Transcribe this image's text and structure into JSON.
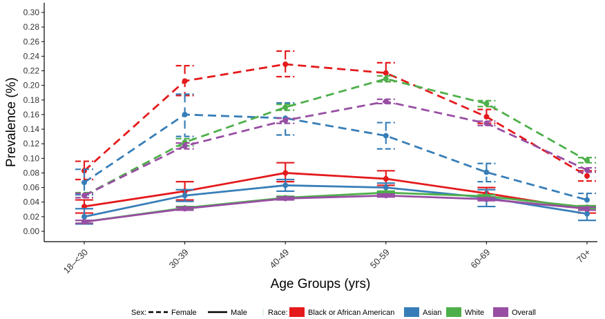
{
  "chart_data": {
    "type": "line",
    "title": "",
    "xlabel": "Age Groups (yrs)",
    "ylabel": "Prevalence (%)",
    "ylim": [
      -0.01,
      0.31
    ],
    "yticks": [
      "0.00",
      "0.02",
      "0.04",
      "0.06",
      "0.08",
      "0.10",
      "0.12",
      "0.14",
      "0.16",
      "0.18",
      "0.20",
      "0.22",
      "0.24",
      "0.26",
      "0.28",
      "0.30"
    ],
    "categories": [
      "18–<30",
      "30-39",
      "40-49",
      "50-59",
      "60-69",
      "70+"
    ],
    "series": [
      {
        "name": "Black or African American",
        "sex": "Female",
        "color": "#e41a1c",
        "dash": true,
        "values": [
          0.083,
          0.206,
          0.229,
          0.217,
          0.157,
          0.076
        ],
        "lower": [
          0.071,
          0.186,
          0.212,
          0.205,
          0.148,
          0.069
        ],
        "upper": [
          0.096,
          0.227,
          0.247,
          0.231,
          0.167,
          0.083
        ]
      },
      {
        "name": "Asian",
        "sex": "Female",
        "color": "#377eb8",
        "dash": true,
        "values": [
          0.067,
          0.16,
          0.155,
          0.131,
          0.081,
          0.043
        ],
        "lower": [
          0.05,
          0.13,
          0.132,
          0.113,
          0.068,
          0.033
        ],
        "upper": [
          0.085,
          0.188,
          0.176,
          0.149,
          0.093,
          0.052
        ]
      },
      {
        "name": "White",
        "sex": "Female",
        "color": "#4daf4a",
        "dash": true,
        "values": [
          0.049,
          0.122,
          0.17,
          0.209,
          0.175,
          0.097
        ],
        "lower": [
          0.046,
          0.117,
          0.166,
          0.205,
          0.171,
          0.094
        ],
        "upper": [
          0.053,
          0.127,
          0.174,
          0.213,
          0.179,
          0.101
        ]
      },
      {
        "name": "Overall",
        "sex": "Female",
        "color": "#984ea3",
        "dash": true,
        "values": [
          0.049,
          0.117,
          0.152,
          0.178,
          0.148,
          0.084
        ],
        "lower": [
          0.046,
          0.113,
          0.148,
          0.175,
          0.145,
          0.081
        ],
        "upper": [
          0.052,
          0.121,
          0.155,
          0.181,
          0.151,
          0.087
        ]
      },
      {
        "name": "Black or African American",
        "sex": "Male",
        "color": "#e41a1c",
        "dash": false,
        "values": [
          0.034,
          0.055,
          0.08,
          0.072,
          0.052,
          0.03
        ],
        "lower": [
          0.025,
          0.043,
          0.068,
          0.063,
          0.045,
          0.025
        ],
        "upper": [
          0.043,
          0.068,
          0.094,
          0.083,
          0.06,
          0.035
        ]
      },
      {
        "name": "Asian",
        "sex": "Male",
        "color": "#377eb8",
        "dash": false,
        "values": [
          0.02,
          0.049,
          0.063,
          0.06,
          0.046,
          0.024
        ],
        "lower": [
          0.01,
          0.041,
          0.055,
          0.054,
          0.034,
          0.015
        ],
        "upper": [
          0.031,
          0.057,
          0.071,
          0.066,
          0.057,
          0.033
        ]
      },
      {
        "name": "White",
        "sex": "Male",
        "color": "#4daf4a",
        "dash": false,
        "values": [
          0.013,
          0.032,
          0.046,
          0.053,
          0.048,
          0.033
        ],
        "lower": [
          0.011,
          0.03,
          0.044,
          0.051,
          0.046,
          0.031
        ],
        "upper": [
          0.015,
          0.034,
          0.048,
          0.055,
          0.05,
          0.035
        ]
      },
      {
        "name": "Overall",
        "sex": "Male",
        "color": "#984ea3",
        "dash": false,
        "values": [
          0.013,
          0.031,
          0.045,
          0.049,
          0.044,
          0.031
        ],
        "lower": [
          0.011,
          0.029,
          0.043,
          0.047,
          0.042,
          0.029
        ],
        "upper": [
          0.015,
          0.033,
          0.047,
          0.051,
          0.046,
          0.033
        ]
      }
    ],
    "legend": {
      "placement": "bottom",
      "sex_title": "Sex:",
      "sex_items": [
        {
          "label": "Female",
          "dash": true
        },
        {
          "label": "Male",
          "dash": false
        }
      ],
      "race_title": "Race:",
      "race_items": [
        {
          "label": "Black or African American",
          "color": "#e41a1c"
        },
        {
          "label": "Asian",
          "color": "#377eb8"
        },
        {
          "label": "White",
          "color": "#4daf4a"
        },
        {
          "label": "Overall",
          "color": "#984ea3"
        }
      ]
    },
    "grid": false
  }
}
